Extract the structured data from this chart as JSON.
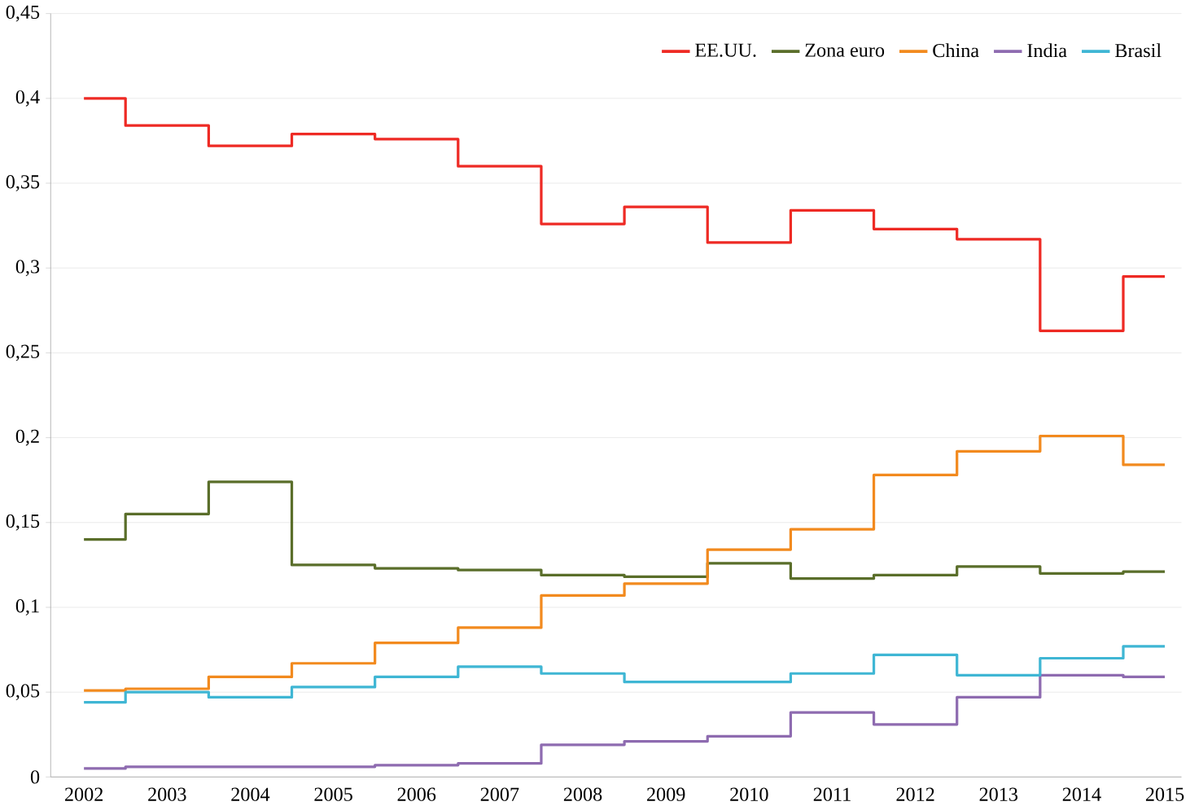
{
  "chart_data": {
    "type": "step",
    "categories": [
      "2002",
      "2003",
      "2004",
      "2005",
      "2006",
      "2007",
      "2008",
      "2009",
      "2010",
      "2011",
      "2012",
      "2013",
      "2014",
      "2015"
    ],
    "series": [
      {
        "name": "EE.UU.",
        "color": "#ee2a24",
        "values": [
          0.4,
          0.384,
          0.372,
          0.379,
          0.376,
          0.36,
          0.326,
          0.336,
          0.315,
          0.334,
          0.323,
          0.317,
          0.263,
          0.295
        ]
      },
      {
        "name": "Zona euro",
        "color": "#5a6e2a",
        "values": [
          0.14,
          0.155,
          0.174,
          0.125,
          0.123,
          0.122,
          0.119,
          0.118,
          0.126,
          0.117,
          0.119,
          0.124,
          0.12,
          0.121
        ]
      },
      {
        "name": "China",
        "color": "#f28a1e",
        "values": [
          0.051,
          0.052,
          0.059,
          0.067,
          0.079,
          0.088,
          0.107,
          0.114,
          0.134,
          0.146,
          0.178,
          0.192,
          0.201,
          0.184
        ]
      },
      {
        "name": "India",
        "color": "#8e6bb0",
        "values": [
          0.005,
          0.006,
          0.006,
          0.006,
          0.007,
          0.008,
          0.019,
          0.021,
          0.024,
          0.038,
          0.031,
          0.047,
          0.06,
          0.059
        ]
      },
      {
        "name": "Brasil",
        "color": "#3fb6d4",
        "values": [
          0.044,
          0.05,
          0.047,
          0.053,
          0.059,
          0.065,
          0.061,
          0.056,
          0.056,
          0.061,
          0.072,
          0.06,
          0.07,
          0.077
        ]
      }
    ],
    "ylim": [
      0,
      0.45
    ],
    "yticks": [
      0,
      {
        "value": 0.05,
        "label": "0,05"
      },
      {
        "value": 0.1,
        "label": "0,1"
      },
      {
        "value": 0.15,
        "label": "0,15"
      },
      {
        "value": 0.2,
        "label": "0,2"
      },
      {
        "value": 0.25,
        "label": "0,25"
      },
      {
        "value": 0.3,
        "label": "0,3"
      },
      {
        "value": 0.35,
        "label": "0,35"
      },
      {
        "value": 0.4,
        "label": "0,4"
      },
      {
        "value": 0.45,
        "label": "0,45"
      }
    ],
    "grid": "y",
    "legend": "top right",
    "marker": "none",
    "line_style": "solid"
  }
}
